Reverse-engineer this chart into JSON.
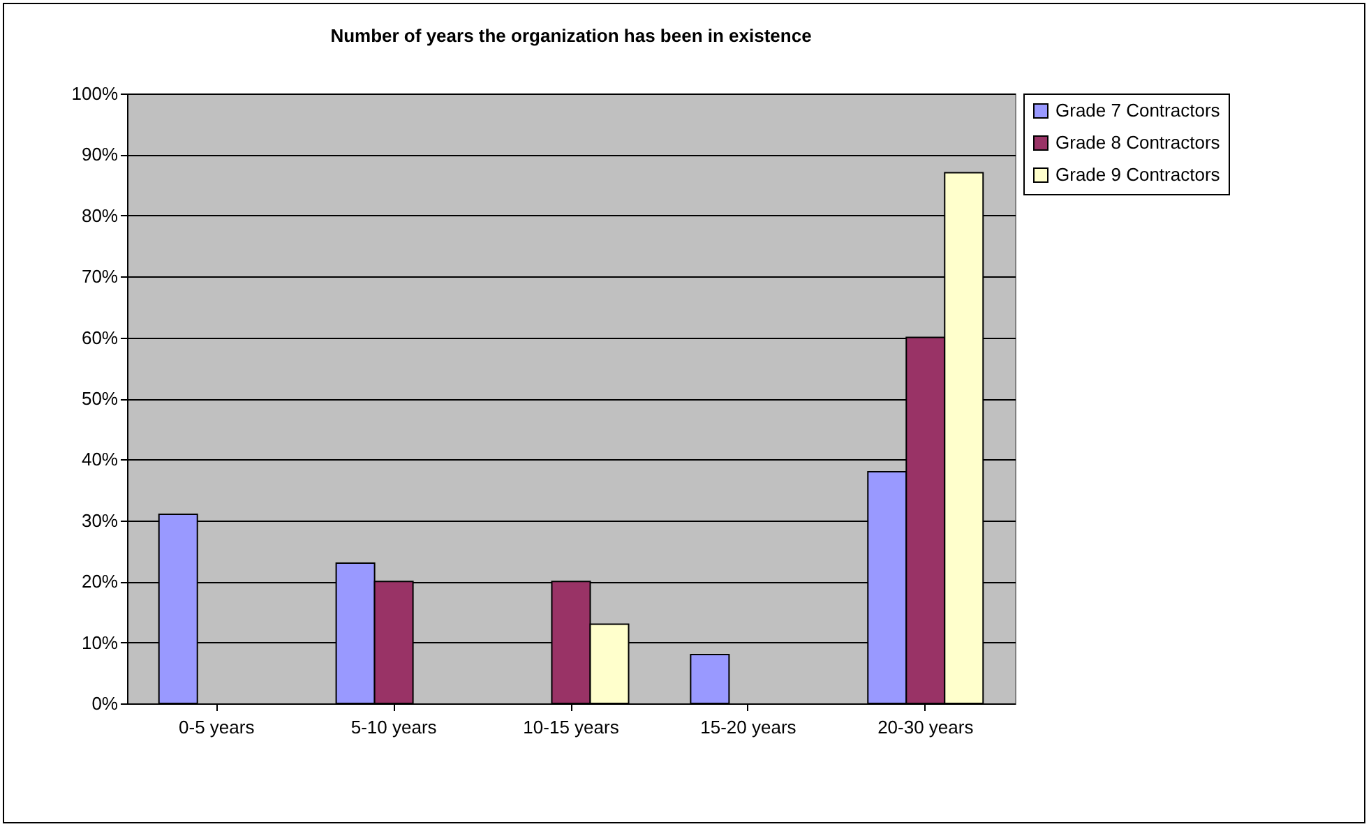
{
  "chart_data": {
    "type": "bar",
    "title": "Number of years the organization has been in existence",
    "categories": [
      "0-5 years",
      "5-10 years",
      "10-15 years",
      "15-20 years",
      "20-30 years"
    ],
    "series": [
      {
        "name": "Grade 7 Contractors",
        "color": "#9999ff",
        "values": [
          31,
          23,
          null,
          8,
          38
        ]
      },
      {
        "name": "Grade 8 Contractors",
        "color": "#993366",
        "values": [
          null,
          20,
          20,
          null,
          60
        ]
      },
      {
        "name": "Grade 9 Contractors",
        "color": "#ffffcc",
        "values": [
          null,
          null,
          13,
          null,
          87
        ]
      }
    ],
    "ylim": [
      0,
      100
    ],
    "yticks": [
      {
        "value": 0,
        "label": "0%"
      },
      {
        "value": 10,
        "label": "10%"
      },
      {
        "value": 20,
        "label": "20%"
      },
      {
        "value": 30,
        "label": "30%"
      },
      {
        "value": 40,
        "label": "40%"
      },
      {
        "value": 50,
        "label": "50%"
      },
      {
        "value": 60,
        "label": "60%"
      },
      {
        "value": 70,
        "label": "70%"
      },
      {
        "value": 80,
        "label": "80%"
      },
      {
        "value": 90,
        "label": "90%"
      },
      {
        "value": 100,
        "label": "100%"
      }
    ],
    "grid": "y",
    "legend": "right"
  }
}
